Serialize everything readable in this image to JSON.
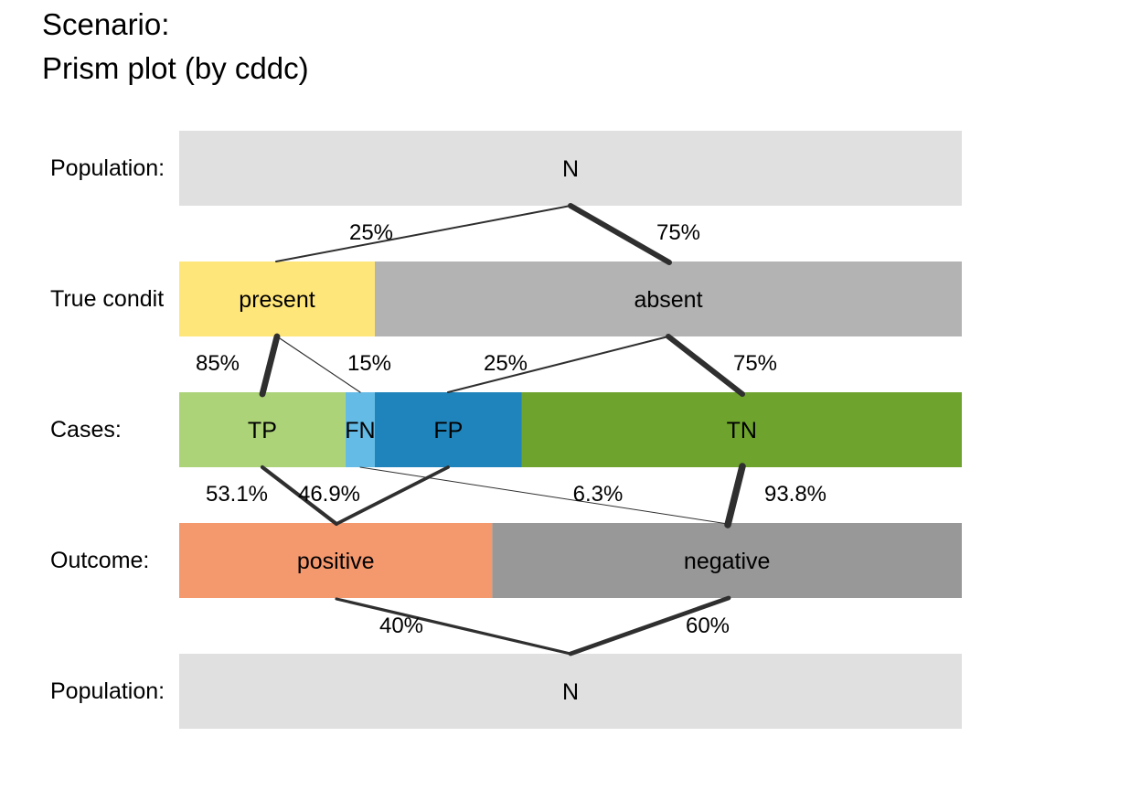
{
  "title": {
    "line1": "Scenario:",
    "line2": "Prism plot (by cddc)"
  },
  "rows": [
    {
      "key": "pop_top",
      "label": "Population:"
    },
    {
      "key": "condition",
      "label": "True condit"
    },
    {
      "key": "cases",
      "label": "Cases:"
    },
    {
      "key": "outcome",
      "label": "Outcome:"
    },
    {
      "key": "pop_bottom",
      "label": "Population:"
    }
  ],
  "boxes": {
    "pop_top": [
      {
        "id": "N-top",
        "label": "N",
        "share": 1.0,
        "color": "#e0e0e0"
      }
    ],
    "condition": [
      {
        "id": "present",
        "label": "present",
        "share": 0.25,
        "color": "#ffe67a"
      },
      {
        "id": "absent",
        "label": "absent",
        "share": 0.75,
        "color": "#b3b3b3"
      }
    ],
    "cases": [
      {
        "id": "TP",
        "label": "TP",
        "share": 0.2125,
        "color": "#acd378"
      },
      {
        "id": "FN",
        "label": "FN",
        "share": 0.0375,
        "color": "#64bbe6"
      },
      {
        "id": "FP",
        "label": "FP",
        "share": 0.1875,
        "color": "#1f84bb"
      },
      {
        "id": "TN",
        "label": "TN",
        "share": 0.5625,
        "color": "#6ea42e"
      }
    ],
    "outcome": [
      {
        "id": "positive",
        "label": "positive",
        "share": 0.4,
        "color": "#f4986e"
      },
      {
        "id": "negative",
        "label": "negative",
        "share": 0.6,
        "color": "#989898"
      }
    ],
    "pop_bottom": [
      {
        "id": "N-bottom",
        "label": "N",
        "share": 1.0,
        "color": "#e0e0e0"
      }
    ]
  },
  "links": [
    {
      "from": "N-top",
      "to": "present",
      "label": "25%",
      "prob": 0.25
    },
    {
      "from": "N-top",
      "to": "absent",
      "label": "75%",
      "prob": 0.75
    },
    {
      "from": "present",
      "to": "TP",
      "label": "85%",
      "prob": 0.85
    },
    {
      "from": "present",
      "to": "FN",
      "label": "15%",
      "prob": 0.15
    },
    {
      "from": "absent",
      "to": "FP",
      "label": "25%",
      "prob": 0.25
    },
    {
      "from": "absent",
      "to": "TN",
      "label": "75%",
      "prob": 0.75
    },
    {
      "from": "TP",
      "to": "positive",
      "label": "53.1%",
      "prob": 0.531
    },
    {
      "from": "FP",
      "to": "positive",
      "label": "46.9%",
      "prob": 0.469
    },
    {
      "from": "FN",
      "to": "negative",
      "label": "6.3%",
      "prob": 0.063
    },
    {
      "from": "TN",
      "to": "negative",
      "label": "93.8%",
      "prob": 0.938
    },
    {
      "from": "positive",
      "to": "N-bottom",
      "label": "40%",
      "prob": 0.4
    },
    {
      "from": "negative",
      "to": "N-bottom",
      "label": "60%",
      "prob": 0.6
    }
  ]
}
